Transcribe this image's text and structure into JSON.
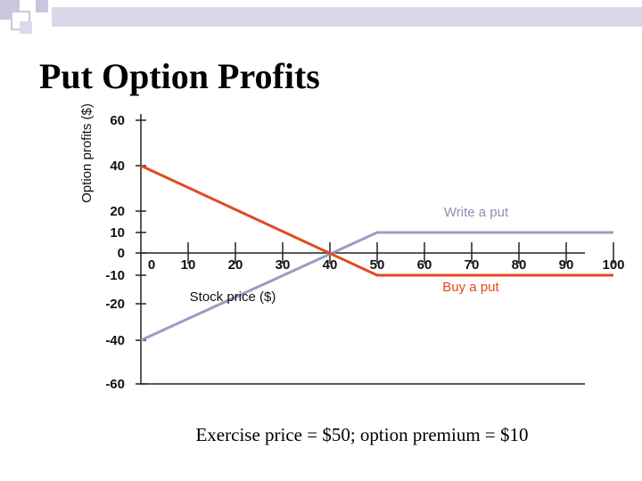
{
  "page": {
    "title": "Put Option Profits",
    "caption": "Exercise price = $50; option premium = $10"
  },
  "colors": {
    "buy_put": "#e04a1f",
    "write_put": "#9c9cc4",
    "decor_square": "#c9c6de",
    "decor_bar": "#d9d7e8"
  },
  "chart_data": {
    "type": "line",
    "title": "",
    "xlabel": "Stock price ($)",
    "ylabel": "Option profits ($)",
    "xlim": [
      0,
      100
    ],
    "ylim": [
      -60,
      60
    ],
    "x_ticks": [
      "0",
      "10",
      "20",
      "30",
      "40",
      "50",
      "60",
      "70",
      "80",
      "90",
      "100"
    ],
    "y_ticks": [
      "60",
      "40",
      "20",
      "10",
      "0",
      "-10",
      "-20",
      "-40",
      "-60"
    ],
    "series": [
      {
        "name": "Buy a put",
        "color": "#e04a1f",
        "x": [
          0,
          50,
          100
        ],
        "y": [
          40,
          -10,
          -10
        ]
      },
      {
        "name": "Write a put",
        "color": "#9c9cc4",
        "x": [
          0,
          50,
          100
        ],
        "y": [
          -40,
          10,
          10
        ]
      }
    ]
  }
}
